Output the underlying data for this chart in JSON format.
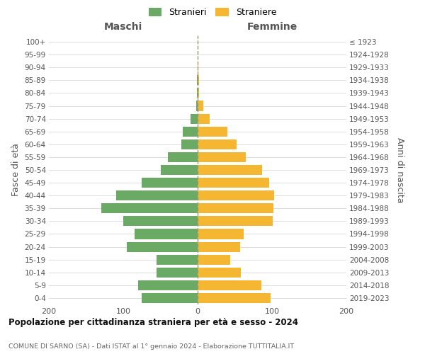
{
  "age_groups": [
    "0-4",
    "5-9",
    "10-14",
    "15-19",
    "20-24",
    "25-29",
    "30-34",
    "35-39",
    "40-44",
    "45-49",
    "50-54",
    "55-59",
    "60-64",
    "65-69",
    "70-74",
    "75-79",
    "80-84",
    "85-89",
    "90-94",
    "95-99",
    "100+"
  ],
  "birth_years": [
    "2019-2023",
    "2014-2018",
    "2009-2013",
    "2004-2008",
    "1999-2003",
    "1994-1998",
    "1989-1993",
    "1984-1988",
    "1979-1983",
    "1974-1978",
    "1969-1973",
    "1964-1968",
    "1959-1963",
    "1954-1958",
    "1949-1953",
    "1944-1948",
    "1939-1943",
    "1934-1938",
    "1929-1933",
    "1924-1928",
    "≤ 1923"
  ],
  "maschi": [
    75,
    80,
    55,
    55,
    95,
    85,
    100,
    130,
    110,
    75,
    50,
    40,
    22,
    20,
    10,
    2,
    1,
    1,
    0,
    0,
    0
  ],
  "femmine": [
    98,
    86,
    58,
    44,
    57,
    62,
    101,
    102,
    103,
    96,
    87,
    65,
    52,
    40,
    16,
    8,
    2,
    2,
    1,
    0,
    0
  ],
  "male_color": "#6aaa64",
  "female_color": "#f5b731",
  "title_main": "Popolazione per cittadinanza straniera per età e sesso - 2024",
  "title_sub": "COMUNE DI SARNO (SA) - Dati ISTAT al 1° gennaio 2024 - Elaborazione TUTTITALIA.IT",
  "header_left": "Maschi",
  "header_right": "Femmine",
  "ylabel_left": "Fasce di età",
  "ylabel_right": "Anni di nascita",
  "legend_male": "Stranieri",
  "legend_female": "Straniere",
  "xlim": 200,
  "bg_color": "#ffffff",
  "grid_color": "#dddddd",
  "dashed_color": "#999977",
  "text_color": "#555555"
}
